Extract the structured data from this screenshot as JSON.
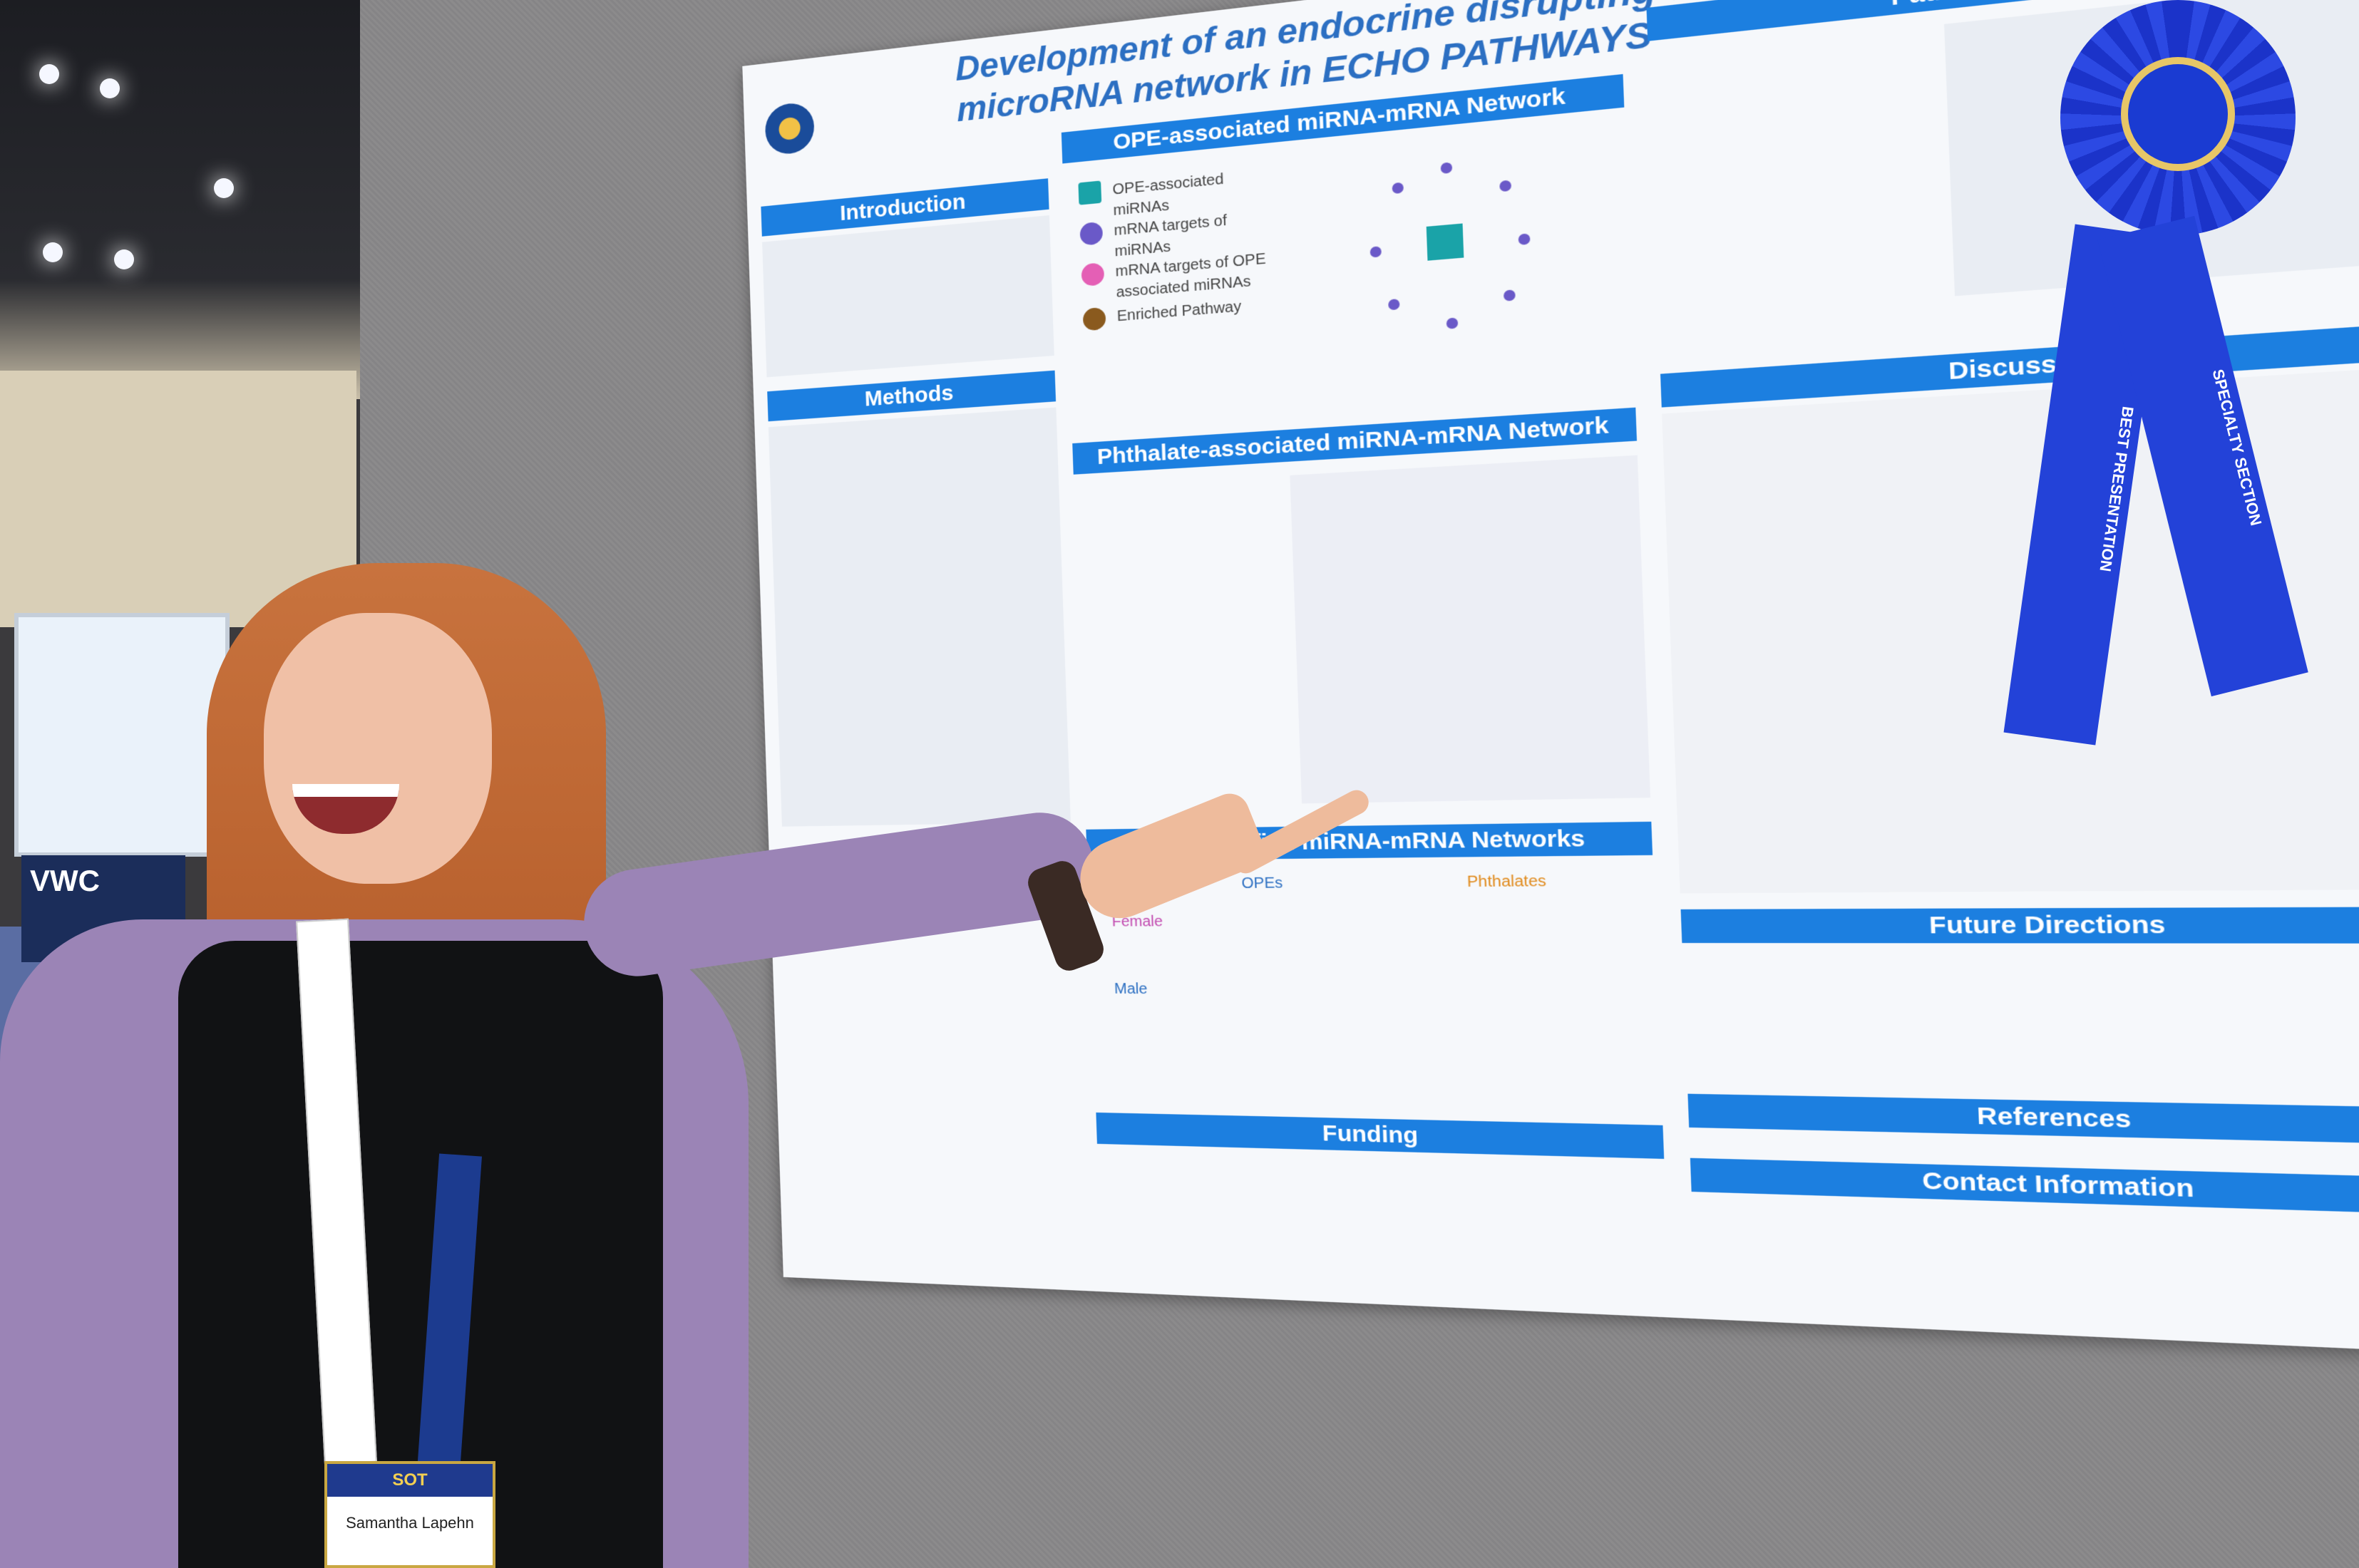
{
  "scene": {
    "description_label": "",
    "booth_sign": "VWC",
    "badge": {
      "event": "SOT",
      "name": "Samantha Lapehn"
    },
    "poster": {
      "title": "Development of an endocrine disrupting chemical multi-omic mRNA microRNA network in ECHO PATHWAYS",
      "section_heads": [
        "Introduction",
        "Methods",
        "OPE-associated miRNA-mRNA Network",
        "Phthalate-associated miRNA-mRNA Network",
        "Sex Stratified miRNA-mRNA Networks",
        "Pathway Analysis",
        "Discussion",
        "Future Directions",
        "References",
        "Contact Information",
        "Funding"
      ],
      "legend_labels": [
        "OPE-associated miRNAs",
        "mRNA targets of miRNAs",
        "mRNA targets of OPE associated miRNAs",
        "Enriched Pathway"
      ],
      "table_headers": [
        "OPEs",
        "Phthalates"
      ],
      "table_rows": [
        "Female",
        "Male"
      ]
    },
    "ribbon": {
      "tail_left": "BEST PRESENTATION",
      "tail_right": "SPECIALTY SECTION"
    }
  },
  "colors": {
    "poster_header": "#1c7fe0",
    "ribbon": "#2342d8",
    "cardigan": "#9b84b6",
    "hair": "#c8733e"
  }
}
